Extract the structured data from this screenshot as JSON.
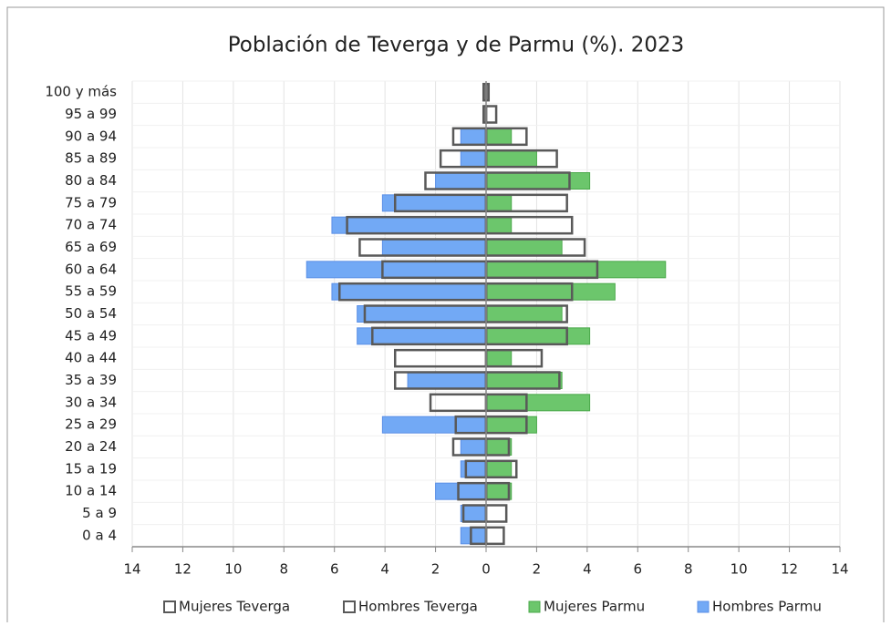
{
  "chart_data": {
    "type": "bar",
    "orientation": "horizontal",
    "title": "Población de Teverga y de Parmu (%). 2023",
    "categories": [
      "0 a 4",
      "5 a 9",
      "10 a 14",
      "15 a 19",
      "20 a 24",
      "25 a 29",
      "30 a 34",
      "35 a 39",
      "40 a 44",
      "45 a 49",
      "50 a 54",
      "55 a 59",
      "60 a 64",
      "65 a 69",
      "70 a 74",
      "75 a 79",
      "80 a 84",
      "85 a 89",
      "90 a 94",
      "95 a 99",
      "100 y más"
    ],
    "series": [
      {
        "name": "Mujeres Teverga",
        "color": "none",
        "edgecolor": "#595959",
        "values": [
          0.7,
          0.8,
          0.9,
          1.2,
          0.9,
          1.6,
          1.6,
          2.9,
          2.2,
          3.2,
          3.2,
          3.4,
          4.4,
          3.9,
          3.4,
          3.2,
          3.3,
          2.8,
          1.6,
          0.4,
          0.1
        ]
      },
      {
        "name": "Hombres Teverga",
        "color": "none",
        "edgecolor": "#595959",
        "values": [
          -0.6,
          -0.9,
          -1.1,
          -0.8,
          -1.3,
          -1.2,
          -2.2,
          -3.6,
          -3.6,
          -4.5,
          -4.8,
          -5.8,
          -4.1,
          -5.0,
          -5.5,
          -3.6,
          -2.4,
          -1.8,
          -1.3,
          -0.1,
          -0.1
        ]
      },
      {
        "name": "Mujeres Parmu",
        "color": "#6cc66c",
        "edgecolor": "#4aa84a",
        "values": [
          0,
          0,
          1.0,
          1.0,
          1.0,
          2.0,
          4.1,
          3.0,
          1.0,
          4.1,
          3.0,
          5.1,
          7.1,
          3.0,
          1.0,
          1.0,
          4.1,
          2.0,
          1.0,
          0,
          0
        ]
      },
      {
        "name": "Hombres Parmu",
        "color": "#72a9f5",
        "edgecolor": "#5b8fe6",
        "values": [
          -1.0,
          -1.0,
          -2.0,
          -1.0,
          -1.0,
          -4.1,
          0,
          -3.1,
          0,
          -5.1,
          -5.1,
          -6.1,
          -7.1,
          -4.1,
          -6.1,
          -4.1,
          -2.0,
          -1.0,
          -1.0,
          0,
          0
        ]
      }
    ],
    "xlim": [
      -14,
      14
    ],
    "xticks": [
      {
        "value": -14,
        "label": "14"
      },
      {
        "value": -12,
        "label": "12"
      },
      {
        "value": -10,
        "label": "10"
      },
      {
        "value": -8,
        "label": "8"
      },
      {
        "value": -6,
        "label": "6"
      },
      {
        "value": -4,
        "label": "4"
      },
      {
        "value": -2,
        "label": "2"
      },
      0,
      2,
      4,
      6,
      8,
      10,
      12,
      14
    ],
    "grid": true,
    "legend": "bottom"
  }
}
